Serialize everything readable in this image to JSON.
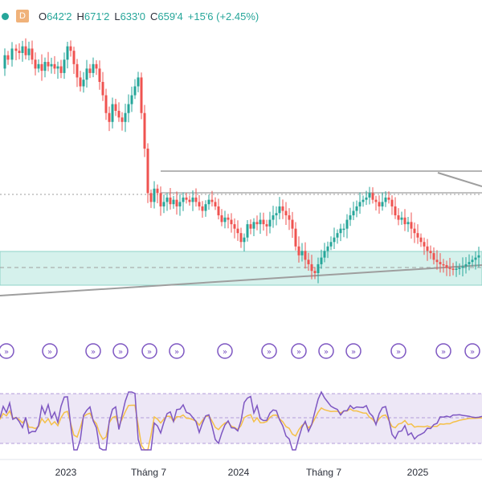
{
  "header": {
    "interval_badge": "D",
    "open_label": "O",
    "open_value": "642'2",
    "high_label": "H",
    "high_value": "671'2",
    "low_label": "L",
    "low_value": "633'0",
    "close_label": "C",
    "close_value": "659'4",
    "change": "+15'6 (+2.45%)"
  },
  "x_axis": {
    "labels": [
      "2023",
      "Tháng 7",
      "2024",
      "Tháng 7",
      "2025"
    ]
  },
  "colors": {
    "up": "#26a69a",
    "down": "#ef5350",
    "zone_fill": "#d5f1ec",
    "zone_stroke": "#8fd3c8",
    "rsi_band": "#ede7f6",
    "rsi_line": "#7e57c2",
    "rsi_ma": "#f5c048",
    "event_icon": "#7e57c2",
    "trendline": "#9e9e9e"
  },
  "events": {
    "icon": "fast-forward-circle-icon",
    "count": 13
  },
  "chart_data": {
    "type": "candlestick",
    "x_labels": [
      "2023",
      "Tháng 7",
      "2024",
      "Tháng 7",
      "2025"
    ],
    "price_path": {
      "x": [
        0,
        6,
        10,
        15,
        20,
        24,
        28,
        32,
        36,
        40,
        44,
        48,
        52,
        56,
        60,
        64,
        68,
        72,
        76,
        80,
        84,
        88,
        92,
        96,
        100,
        104,
        108,
        112,
        116,
        120,
        124,
        128,
        132,
        136,
        140,
        144,
        148,
        152,
        156,
        160,
        164,
        168,
        172,
        176,
        180,
        184,
        188,
        192,
        196,
        200,
        204,
        208,
        212,
        216,
        220,
        224,
        228,
        232,
        236,
        240,
        244,
        248,
        252,
        256,
        260,
        264,
        268,
        272,
        276,
        280,
        284,
        288,
        292,
        296,
        300,
        304,
        308,
        312,
        316,
        320,
        324,
        328,
        332,
        336,
        340,
        344,
        348,
        352,
        356,
        360,
        364,
        368,
        372,
        376,
        380,
        384,
        388,
        392,
        396,
        400,
        404,
        408,
        412,
        416,
        420,
        424,
        428,
        432,
        436,
        440,
        444,
        448,
        452,
        456,
        460,
        464,
        468,
        472,
        476,
        480,
        484,
        488,
        492,
        496,
        500,
        504,
        508,
        512,
        516,
        520,
        524,
        528,
        532,
        536,
        540,
        544,
        548,
        552,
        556,
        560,
        564,
        568,
        572,
        576,
        580,
        584,
        588,
        592,
        596
      ],
      "price": [
        1000,
        1030,
        1020,
        1045,
        1040,
        1035,
        1050,
        1030,
        1045,
        1020,
        1000,
        1010,
        995,
        1015,
        1005,
        1010,
        1000,
        1005,
        990,
        1020,
        1050,
        1040,
        1010,
        980,
        960,
        975,
        1000,
        990,
        1010,
        1000,
        970,
        940,
        900,
        880,
        920,
        905,
        890,
        880,
        900,
        920,
        940,
        960,
        980,
        900,
        820,
        720,
        700,
        730,
        720,
        690,
        700,
        710,
        695,
        705,
        690,
        700,
        710,
        705,
        700,
        710,
        700,
        690,
        680,
        695,
        705,
        700,
        690,
        670,
        655,
        665,
        660,
        650,
        640,
        630,
        610,
        620,
        650,
        640,
        655,
        650,
        660,
        650,
        645,
        660,
        670,
        675,
        690,
        680,
        670,
        660,
        640,
        600,
        580,
        590,
        570,
        560,
        545,
        540,
        560,
        575,
        590,
        600,
        610,
        620,
        630,
        640,
        640,
        660,
        670,
        680,
        690,
        700,
        705,
        710,
        720,
        705,
        700,
        690,
        700,
        710,
        705,
        690,
        670,
        660,
        665,
        650,
        655,
        640,
        630,
        620,
        610,
        600,
        590,
        585,
        570,
        565,
        560,
        558,
        552,
        550,
        548,
        550,
        552,
        555,
        560,
        565,
        570,
        575,
        580
      ],
      "note": ""
    }
  }
}
